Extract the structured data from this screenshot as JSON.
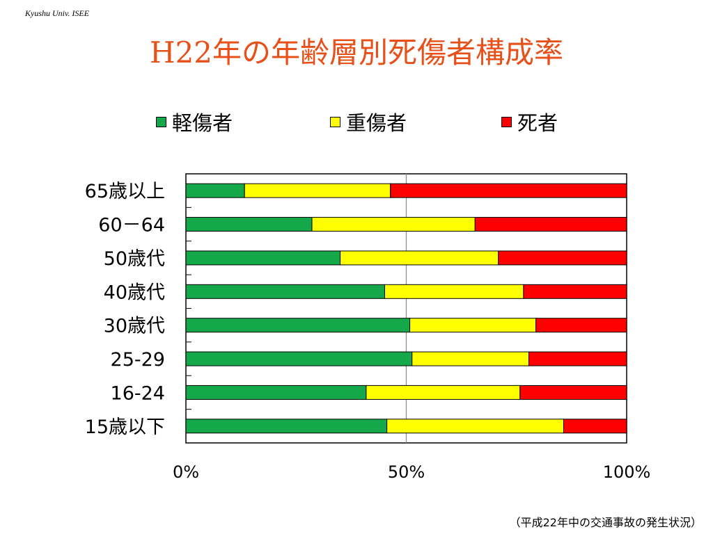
{
  "slide": {
    "header_tag": "Kyushu Univ. ISEE",
    "title": "H22年の年齢層別死傷者構成率",
    "footnote": "（平成22年中の交通事故の発生状況）"
  },
  "colors": {
    "green": "#15a84a",
    "yellow": "#ffff00",
    "red": "#ff0000",
    "title": "#e8501a"
  },
  "chart_data": {
    "type": "bar",
    "orientation": "horizontal",
    "stacked": "percent",
    "categories": [
      "65歳以上",
      "60－64",
      "50歳代",
      "40歳代",
      "30歳代",
      "25-29",
      "16-24",
      "15歳以下"
    ],
    "series": [
      {
        "name": "軽傷者",
        "color": "#15a84a",
        "values": [
          13.3,
          28.6,
          35.0,
          45.1,
          50.8,
          51.3,
          40.9,
          45.6
        ]
      },
      {
        "name": "重傷者",
        "color": "#ffff00",
        "values": [
          33.1,
          37.0,
          35.9,
          31.5,
          28.6,
          26.5,
          34.9,
          40.1
        ]
      },
      {
        "name": "死者",
        "color": "#ff0000",
        "values": [
          53.6,
          34.4,
          29.1,
          23.4,
          20.6,
          22.2,
          24.2,
          14.3
        ]
      }
    ],
    "x_ticks": [
      "0%",
      "50%",
      "100%"
    ],
    "xlim": [
      0,
      100
    ],
    "xlabel": "",
    "ylabel": "",
    "legend": "top",
    "grid": "vertical line at 50%"
  }
}
